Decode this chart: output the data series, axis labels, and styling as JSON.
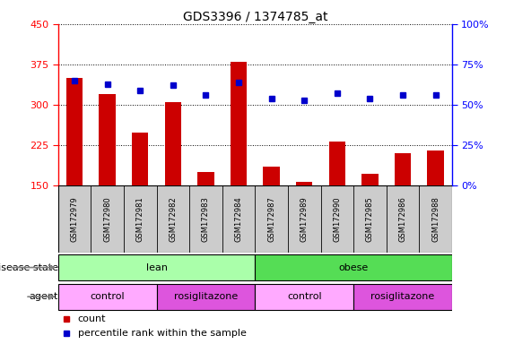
{
  "title": "GDS3396 / 1374785_at",
  "samples": [
    "GSM172979",
    "GSM172980",
    "GSM172981",
    "GSM172982",
    "GSM172983",
    "GSM172984",
    "GSM172987",
    "GSM172989",
    "GSM172990",
    "GSM172985",
    "GSM172986",
    "GSM172988"
  ],
  "counts": [
    350,
    320,
    248,
    305,
    175,
    380,
    185,
    158,
    232,
    172,
    210,
    215
  ],
  "percentiles": [
    65,
    63,
    59,
    62,
    56,
    64,
    54,
    53,
    57,
    54,
    56,
    56
  ],
  "ylim_left": [
    150,
    450
  ],
  "ylim_right": [
    0,
    100
  ],
  "yticks_left": [
    150,
    225,
    300,
    375,
    450
  ],
  "yticks_right": [
    0,
    25,
    50,
    75,
    100
  ],
  "bar_color": "#cc0000",
  "dot_color": "#0000cc",
  "bar_width": 0.5,
  "disease_lean_color": "#aaffaa",
  "disease_obese_color": "#55dd55",
  "agent_control_color": "#ffaaff",
  "agent_rosig_color": "#dd55dd",
  "xticklabel_bg": "#cccccc",
  "legend_count_color": "#cc0000",
  "legend_pct_color": "#0000cc",
  "title_fontsize": 10,
  "ytick_fontsize": 8,
  "xtick_fontsize": 6,
  "annotation_fontsize": 8,
  "bar_gap_color": "#ffffff"
}
